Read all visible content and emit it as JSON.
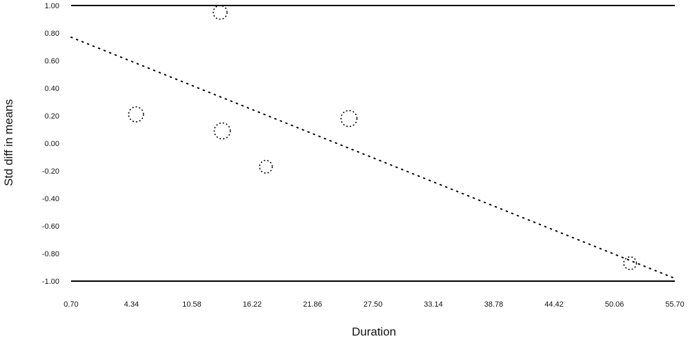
{
  "chart_data": {
    "type": "scatter",
    "title": "",
    "xlabel": "Duration",
    "ylabel": "Std diff in means",
    "x_ticks": [
      "0.70",
      "4.34",
      "10.58",
      "16.22",
      "21.86",
      "27.50",
      "33.14",
      "38.78",
      "44.42",
      "50.06",
      "55.70"
    ],
    "y_ticks": [
      "1.00",
      "0.80",
      "0.60",
      "0.40",
      "0.20",
      "0.00",
      "-0.20",
      "-0.40",
      "-0.60",
      "-0.80",
      "-1.00"
    ],
    "xlim": [
      -1.0,
      55.7
    ],
    "ylim": [
      -1.0,
      1.0
    ],
    "grid": false,
    "reference_lines_y": [
      1.0,
      -1.0
    ],
    "series": [
      {
        "values": [
          {
            "x": 5.1,
            "y": 0.21,
            "size": 0.06
          },
          {
            "x": 13.2,
            "y": 0.09,
            "size": 0.07
          },
          {
            "x": 13.0,
            "y": 0.95,
            "size": 0.05
          },
          {
            "x": 17.3,
            "y": -0.17,
            "size": 0.04
          },
          {
            "x": 25.1,
            "y": 0.18,
            "size": 0.07
          },
          {
            "x": 51.5,
            "y": -0.87,
            "size": 0.04
          }
        ]
      }
    ],
    "regression_line": {
      "x": [
        -1.0,
        55.7
      ],
      "y": [
        0.77,
        -0.98
      ]
    },
    "colors": {
      "line": "#000000",
      "markers": "#000000",
      "background": "#ffffff"
    }
  }
}
